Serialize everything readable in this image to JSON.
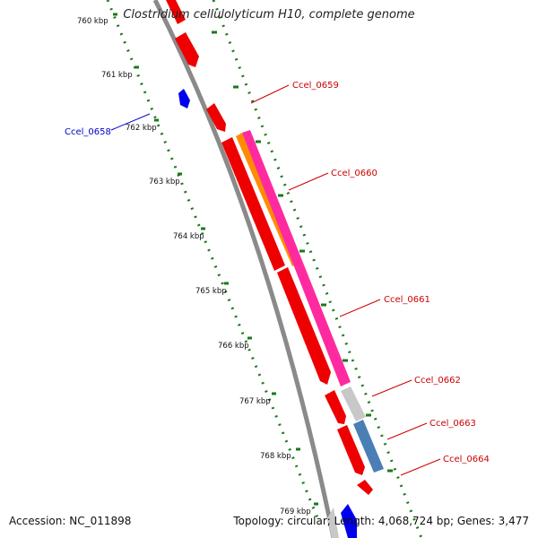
{
  "title": "Clostridium cellulolyticum H10, complete genome",
  "accession_text": "Accession: NC_011898",
  "summary_text": "Topology: circular; Length: 4,068,724 bp; Genes: 3,477",
  "ticks": [
    "760 kbp",
    "761 kbp",
    "762 kbp",
    "763 kbp",
    "764 kbp",
    "765 kbp",
    "766 kbp",
    "767 kbp",
    "768 kbp",
    "769 kbp"
  ],
  "gene_labels": [
    {
      "name": "Ccel_0659",
      "color": "#cc0000"
    },
    {
      "name": "Ccel_0658",
      "color": "#0000cc"
    },
    {
      "name": "Ccel_0660",
      "color": "#cc0000"
    },
    {
      "name": "Ccel_0661",
      "color": "#cc0000"
    },
    {
      "name": "Ccel_0662",
      "color": "#cc0000"
    },
    {
      "name": "Ccel_0663",
      "color": "#cc0000"
    },
    {
      "name": "Ccel_0664",
      "color": "#cc0000"
    }
  ],
  "colors": {
    "backbone": "#8a8a8a",
    "tick_green": "#1a7a1a",
    "forward_gene": "#ee0000",
    "reverse_gene": "#0000ee",
    "magenta_feature": "#ff2aa0",
    "orange_feature": "#ff8c00",
    "gray_feature": "#c8c8c8",
    "steelblue_feature": "#4a7fb5"
  }
}
